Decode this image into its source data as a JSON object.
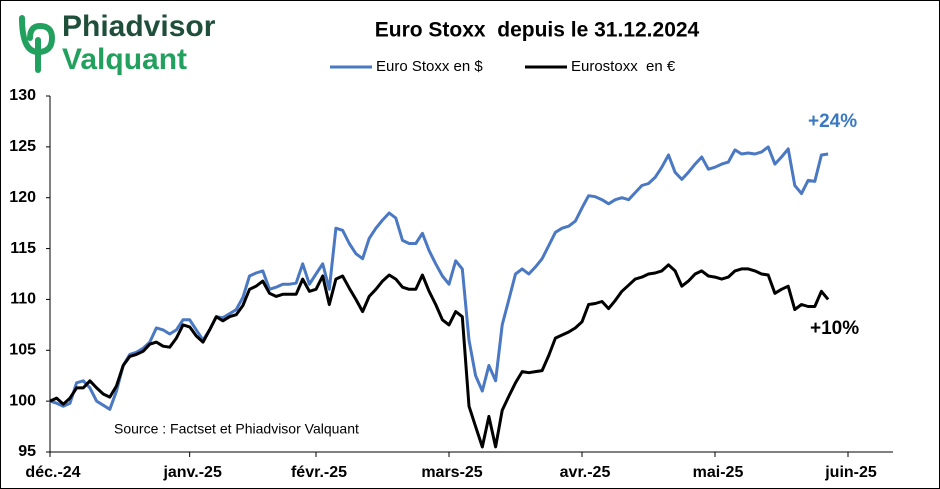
{
  "brand": {
    "line1": "Phiadvisor",
    "line2": "Valquant"
  },
  "chart_data": {
    "type": "line",
    "title": "Euro Stoxx  depuis le 31.12.2024",
    "annotations": [
      "+24%",
      "+10%",
      "Source : Factset et Phiadvisor Valquant"
    ],
    "categories": [
      "déc.-24",
      null,
      null,
      null,
      null,
      null,
      null,
      null,
      null,
      null,
      null,
      null,
      null,
      null,
      null,
      null,
      null,
      null,
      null,
      null,
      null,
      "janv.-25",
      null,
      null,
      null,
      null,
      null,
      null,
      null,
      null,
      null,
      null,
      null,
      null,
      null,
      null,
      null,
      null,
      null,
      null,
      "févr.-25",
      null,
      null,
      null,
      null,
      null,
      null,
      null,
      null,
      null,
      null,
      null,
      null,
      null,
      null,
      null,
      null,
      null,
      null,
      null,
      "mars-25",
      null,
      null,
      null,
      null,
      null,
      null,
      null,
      null,
      null,
      null,
      null,
      null,
      null,
      null,
      null,
      null,
      null,
      null,
      null,
      "avr.-25",
      null,
      null,
      null,
      null,
      null,
      null,
      null,
      null,
      null,
      null,
      null,
      null,
      null,
      null,
      null,
      null,
      null,
      null,
      null,
      "mai-25",
      null,
      null,
      null,
      null,
      null,
      null,
      null,
      null,
      null,
      null,
      null,
      null,
      null,
      null,
      null,
      null,
      null,
      null,
      null,
      "juin-25"
    ],
    "series": [
      {
        "name": "Euro Stoxx en $",
        "color": "#4a78c2",
        "values": [
          100,
          99.8,
          99.5,
          99.8,
          101.8,
          102,
          101.3,
          100,
          99.6,
          99.2,
          101,
          103.5,
          104.6,
          104.8,
          105.2,
          105.8,
          107.2,
          107,
          106.6,
          107,
          108,
          108,
          107,
          106,
          107,
          108.3,
          108.2,
          108.6,
          109,
          110.2,
          112.3,
          112.6,
          112.8,
          111,
          111.2,
          111.5,
          111.5,
          111.6,
          113.5,
          111.5,
          112.5,
          113.5,
          111,
          117,
          116.8,
          115.5,
          114.5,
          114,
          116,
          117,
          117.8,
          118.5,
          118,
          115.8,
          115.5,
          115.5,
          116.5,
          114.8,
          113.5,
          112.3,
          111.5,
          113.8,
          113,
          106,
          102.5,
          101,
          103.5,
          102,
          107.5,
          110,
          112.5,
          113,
          112.5,
          113.2,
          114,
          115.3,
          116.6,
          117,
          117.2,
          117.7,
          119,
          120.2,
          120.1,
          119.8,
          119.4,
          119.8,
          120,
          119.8,
          120.5,
          121.2,
          121.4,
          122,
          123,
          124.2,
          122.5,
          121.8,
          122.5,
          123.3,
          124,
          122.8,
          123,
          123.3,
          123.5,
          124.7,
          124.3,
          124.4,
          124.3,
          124.5,
          125,
          123.3,
          124,
          124.8,
          121.2,
          120.4,
          121.7,
          121.6,
          124.2,
          124.3,
          null,
          null,
          null
        ]
      },
      {
        "name": "Eurostoxx  en €",
        "color": "#000000",
        "values": [
          100,
          100.3,
          99.7,
          100.3,
          101.3,
          101.3,
          102,
          101.3,
          100.7,
          100.4,
          101.5,
          103.5,
          104.4,
          104.6,
          104.9,
          105.6,
          105.8,
          105.4,
          105.3,
          106.2,
          107.5,
          107.3,
          106.4,
          105.8,
          107,
          108.3,
          107.9,
          108.3,
          108.5,
          109.4,
          111,
          111.3,
          111.8,
          110.6,
          110.3,
          110.5,
          110.5,
          110.5,
          112,
          110.8,
          111,
          112.3,
          109.5,
          112,
          112.3,
          111.1,
          110,
          108.8,
          110.3,
          111,
          111.8,
          112.4,
          112,
          111.2,
          111,
          111,
          112.4,
          110.8,
          109.5,
          108,
          107.5,
          108.8,
          108.3,
          99.5,
          97.5,
          95.5,
          98.5,
          95.5,
          99.1,
          100.5,
          101.8,
          102.9,
          102.8,
          102.9,
          103,
          104.5,
          106.2,
          106.5,
          106.8,
          107.2,
          107.8,
          109.5,
          109.6,
          109.8,
          109.1,
          109.9,
          110.8,
          111.4,
          112,
          112.2,
          112.5,
          112.6,
          112.8,
          113.4,
          112.8,
          111.3,
          111.8,
          112.5,
          112.8,
          112.3,
          112.2,
          112,
          112.2,
          112.8,
          113,
          113,
          112.8,
          112.5,
          112.4,
          110.6,
          111,
          111.3,
          109,
          109.5,
          109.3,
          109.3,
          110.8,
          110,
          null,
          null,
          null
        ]
      }
    ],
    "ylim": [
      95,
      130
    ],
    "yticks": [
      95,
      100,
      105,
      110,
      115,
      120,
      125,
      130
    ],
    "grid": false
  }
}
